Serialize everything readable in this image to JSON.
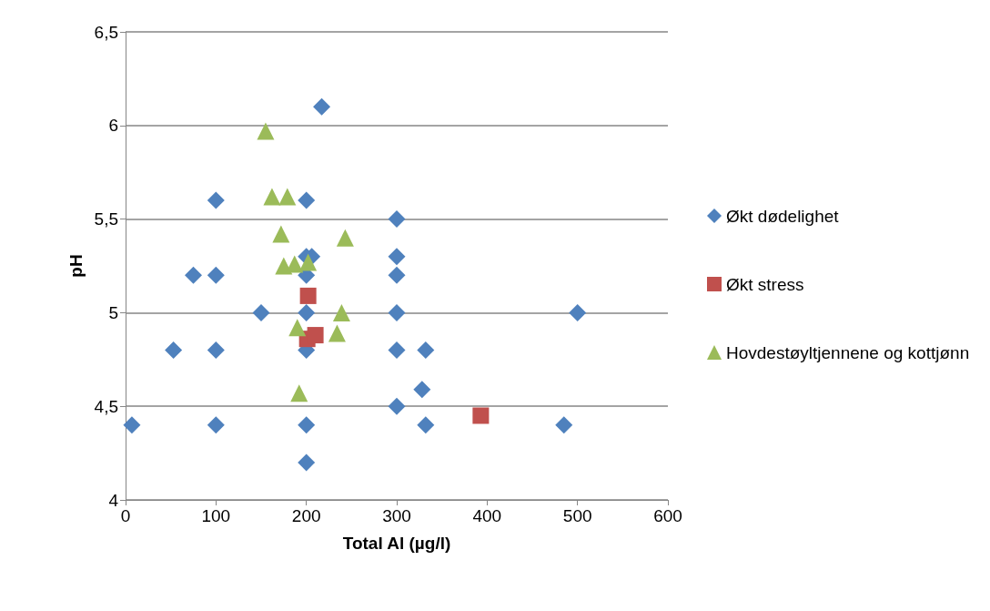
{
  "chart_data": {
    "type": "scatter",
    "xlabel": "Total Al (µg/l)",
    "ylabel": "pH",
    "xlim": [
      0,
      600
    ],
    "xticks": [
      0,
      100,
      200,
      300,
      400,
      500,
      600
    ],
    "ylim": [
      4,
      6.5
    ],
    "yticks": [
      4,
      {
        "value": 4.5,
        "label": "4,5"
      },
      {
        "value": 5,
        "label": "5"
      },
      {
        "value": 5.5,
        "label": "5,5"
      },
      {
        "value": 6,
        "label": "6"
      },
      {
        "value": 6.5,
        "label": "6,5"
      }
    ],
    "grid": "y",
    "legend": "right",
    "series": [
      {
        "name": "Økt dødelighet",
        "color": "#4f81bd",
        "marker": "diamond",
        "x": [
          7,
          53,
          75,
          100,
          100,
          100,
          100,
          150,
          200,
          206,
          200,
          200,
          200,
          200,
          200,
          200,
          217,
          300,
          300,
          300,
          300,
          300,
          300,
          328,
          332,
          332,
          485,
          500
        ],
        "values": [
          4.4,
          4.8,
          5.2,
          5.6,
          5.2,
          4.8,
          4.4,
          5.0,
          5.6,
          5.3,
          5.3,
          5.2,
          5.0,
          4.8,
          4.4,
          4.2,
          6.1,
          5.5,
          5.3,
          5.2,
          5.0,
          4.8,
          4.5,
          4.59,
          4.8,
          4.4,
          4.4,
          5.0
        ]
      },
      {
        "name": "Økt stress",
        "color": "#c0504d",
        "marker": "square",
        "x": [
          202,
          201,
          210,
          393
        ],
        "values": [
          5.09,
          4.86,
          4.88,
          4.45
        ]
      },
      {
        "name": "Hovdestøyltjennene og kottjønn",
        "color": "#9bbb59",
        "marker": "triangle",
        "x": [
          155,
          162,
          179,
          172,
          243,
          175,
          187,
          202,
          190,
          239,
          234,
          192
        ],
        "values": [
          5.97,
          5.62,
          5.62,
          5.42,
          5.4,
          5.25,
          5.26,
          5.27,
          4.92,
          5.0,
          4.89,
          4.57
        ]
      }
    ]
  }
}
